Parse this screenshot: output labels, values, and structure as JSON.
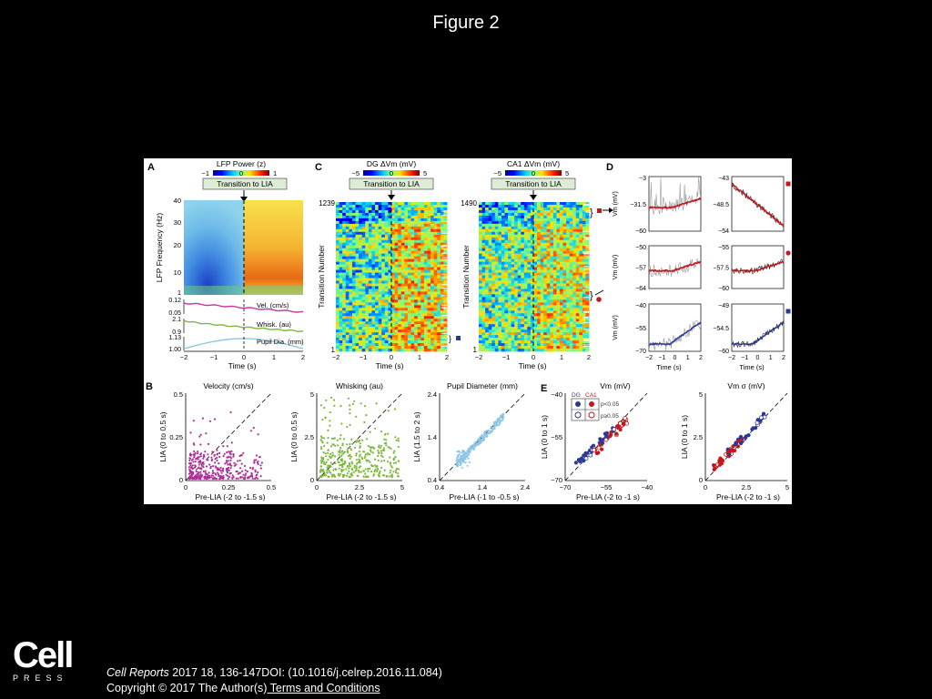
{
  "page": {
    "title": "Figure 2"
  },
  "footer": {
    "logo": {
      "word": "Cell",
      "sub": "PRESS"
    },
    "citation_journal": "Cell Reports",
    "citation_rest": " 2017 18, 136-147DOI: (10.1016/j.celrep.2016.11.084)",
    "copyright": "Copyright © 2017 The Author(s)",
    "terms_link": " Terms and Conditions"
  },
  "figure": {
    "panel_a": {
      "letter": "A",
      "colorbar_title": "LFP Power (z)",
      "colorbar_ticks": [
        "−1",
        "0",
        "1"
      ],
      "transition_label": "Transition to LIA",
      "ylabel": "LFP Frequency (Hz)",
      "yticks": [
        "40",
        "30",
        "20",
        "10",
        "1"
      ],
      "xticks": [
        "−2",
        "−1",
        "0",
        "1",
        "2"
      ],
      "xlabel": "Time (s)",
      "traces": [
        {
          "label": "Vel. (cm/s)",
          "top": "0.12",
          "bottom": "0.05",
          "color": "#c8349c"
        },
        {
          "label": "Whisk. (au)",
          "top": "2.1",
          "bottom": "0.9",
          "color": "#7ab93a"
        },
        {
          "label": "Pupil Dia. (mm)",
          "top": "1.13",
          "bottom": "1.00",
          "color": "#8ec6e6"
        }
      ]
    },
    "panel_c": {
      "letter": "C",
      "dg_title": "DG ΔVm (mV)",
      "ca1_title": "CA1 ΔVm (mV)",
      "colorbar_ticks": [
        "−5",
        "0",
        "5"
      ],
      "transition_label": "Transition to LIA",
      "ylabel": "Transition Number",
      "dg_top": "1239",
      "ca1_top": "1490",
      "bottom": "1",
      "xticks": [
        "−2",
        "−1",
        "0",
        "1",
        "2"
      ],
      "xlabel": "Time (s)"
    },
    "panel_d": {
      "letter": "D",
      "ylabel": "Vm (mV)",
      "xlabel": "Time (s)",
      "xticks": [
        "−2",
        "−1",
        "0",
        "1",
        "2"
      ],
      "left_rows": [
        {
          "ticks": [
            "−3",
            "−31.5",
            "−60"
          ],
          "line_color": "#c4161c"
        },
        {
          "ticks": [
            "−50",
            "−57",
            "−64"
          ],
          "line_color": "#c4161c"
        },
        {
          "ticks": [
            "−40",
            "−55",
            "−70"
          ],
          "line_color": "#2c3896"
        }
      ],
      "right_rows": [
        {
          "ticks": [
            "−43",
            "−48.5",
            "−54"
          ],
          "line_color": "#c4161c",
          "marker": "square",
          "marker_color": "#c4161c"
        },
        {
          "ticks": [
            "−55",
            "−57.5",
            "−60"
          ],
          "line_color": "#c4161c",
          "marker": "circle",
          "marker_color": "#c4161c"
        },
        {
          "ticks": [
            "−49",
            "−54.5",
            "−60"
          ],
          "line_color": "#2c3896",
          "marker": "square",
          "marker_color": "#2c3896"
        }
      ]
    },
    "panel_b": {
      "letter": "B",
      "plots": [
        {
          "title": "Velocity (cm/s)",
          "xlabel": "Pre-LIA (-2 to -1.5 s)",
          "ylabel": "LIA (0 to 0.5 s)",
          "ticks": [
            "0",
            "0.25",
            "0.5"
          ],
          "color": "#b0309a"
        },
        {
          "title": "Whisking (au)",
          "xlabel": "Pre-LIA (-2 to -1.5 s)",
          "ylabel": "LIA (0 to 0.5 s)",
          "ticks": [
            "0",
            "2.5",
            "5"
          ],
          "color": "#7ab93a"
        },
        {
          "title": "Pupil Diameter (mm)",
          "xlabel": "Pre-LIA (-1 to -0.5 s)",
          "ylabel": "LIA  (1.5 to 2 s)",
          "ticks": [
            "0.4",
            "1.4",
            "2.4"
          ],
          "color": "#8ec6e6"
        }
      ]
    },
    "panel_e": {
      "letter": "E",
      "plots": [
        {
          "title": "Vm (mV)",
          "xlabel": "Pre-LIA (-2 to -1 s)",
          "ylabel": "LIA (0 to 1 s)",
          "ticks": [
            "−70",
            "−55",
            "−40"
          ]
        },
        {
          "title": "Vm σ (mV)",
          "xlabel": "Pre-LIA (-2 to -1 s)",
          "ylabel": "LIA (0 to 1 s)",
          "ticks": [
            "0",
            "2.5",
            "5"
          ]
        }
      ],
      "legend": {
        "dg": "DG",
        "ca1": "CA1",
        "sig": "p<0.05",
        "ns": "p≥0.05"
      },
      "dg_color": "#2c3896",
      "ca1_color": "#c4161c"
    }
  }
}
